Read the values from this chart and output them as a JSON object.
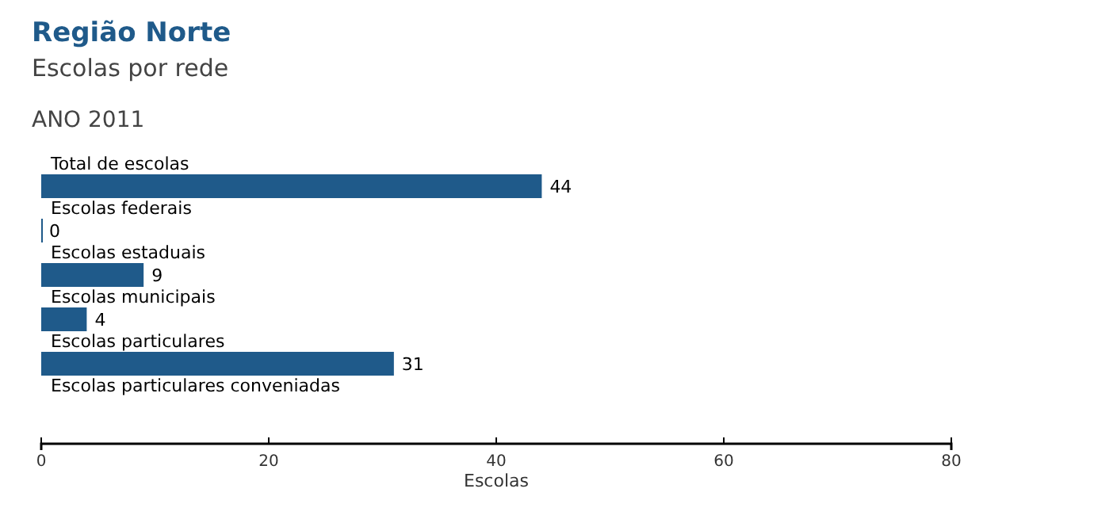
{
  "chart_data": {
    "type": "bar",
    "title": "Região Norte",
    "subtitle": "Escolas por rede",
    "annotations": [
      "ANO 2011"
    ],
    "xlabel": "Escolas",
    "orientation": "horizontal",
    "categories": [
      "Total de escolas",
      "Escolas federais",
      "Escolas estaduais",
      "Escolas municipais",
      "Escolas particulares",
      "Escolas particulares conveniadas"
    ],
    "values": [
      44,
      0,
      9,
      4,
      31,
      null
    ],
    "color": "#1f5a8a",
    "data_labels": true,
    "xlim": [
      0,
      80
    ],
    "xticks": [
      0,
      20,
      40,
      60,
      80
    ],
    "grid": false
  }
}
